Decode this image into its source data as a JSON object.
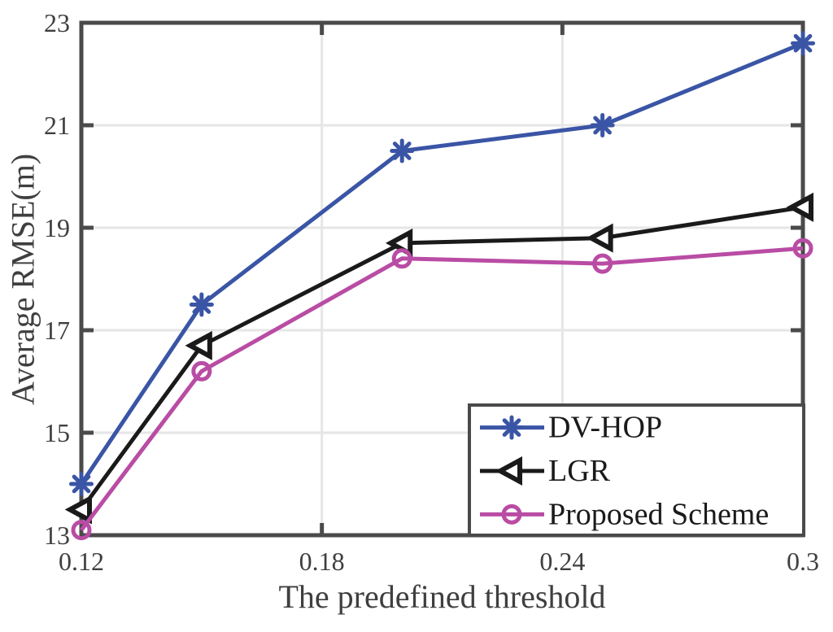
{
  "chart_data": {
    "type": "line",
    "title": "",
    "xlabel": "The predefined threshold",
    "ylabel": "Average RMSE(m)",
    "x": [
      0.12,
      0.15,
      0.2,
      0.25,
      0.3
    ],
    "xlim": [
      0.12,
      0.3
    ],
    "ylim": [
      13,
      23
    ],
    "xticks": [
      0.12,
      0.18,
      0.24,
      0.3
    ],
    "xtick_labels": [
      "0.12",
      "0.18",
      "0.24",
      "0.3"
    ],
    "yticks": [
      13,
      15,
      17,
      19,
      21,
      23
    ],
    "ytick_labels": [
      "13",
      "15",
      "17",
      "19",
      "21",
      "23"
    ],
    "grid": true,
    "legend_position": "bottom-right",
    "series": [
      {
        "name": "DV-HOP",
        "color": "#3A55A5",
        "marker": "asterisk",
        "values": [
          14.0,
          17.5,
          20.5,
          21.0,
          22.6
        ]
      },
      {
        "name": "LGR",
        "color": "#1A1A1A",
        "marker": "triangle-left",
        "values": [
          13.5,
          16.7,
          18.7,
          18.8,
          19.4
        ]
      },
      {
        "name": "Proposed Scheme",
        "color": "#B94CA4",
        "marker": "circle",
        "values": [
          13.1,
          16.2,
          18.4,
          18.3,
          18.6
        ]
      }
    ],
    "colors": {
      "background": "#FFFFFF",
      "frame": "#4A4A4A",
      "grid": "#E6E6E6",
      "tick_text": "#3F3F3F",
      "legend_text": "#1A1A1A",
      "legend_border": "#4A4A4A"
    }
  }
}
